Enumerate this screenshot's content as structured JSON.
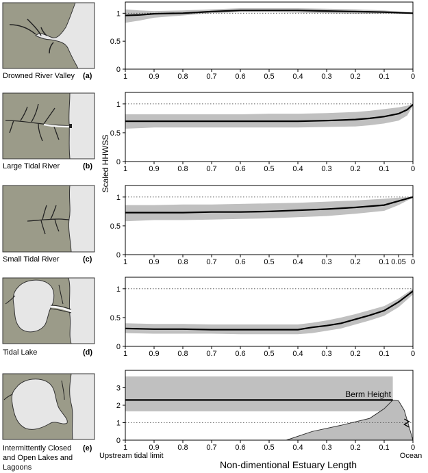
{
  "figure": {
    "y_axis_label": "Scaled HHWSS",
    "x_axis_label": "Non-dimentional Estuary Length",
    "left_end_label": "Upstream tidal limit",
    "right_end_label": "Ocean",
    "colors": {
      "land": "#9b9b89",
      "water": "#e6e6e6",
      "band": "#c0c0c0",
      "line": "#000000",
      "berm": "#bdbdbd"
    }
  },
  "panels": [
    {
      "letter": "(a)",
      "name_lines": [
        "Drowned River Valley"
      ],
      "sketch": "drowned"
    },
    {
      "letter": "(b)",
      "name_lines": [
        "Large Tidal River"
      ],
      "sketch": "large"
    },
    {
      "letter": "(c)",
      "name_lines": [
        "Small Tidal River"
      ],
      "sketch": "small"
    },
    {
      "letter": "(d)",
      "name_lines": [
        "Tidal Lake"
      ],
      "sketch": "lake"
    },
    {
      "letter": "(e)",
      "name_lines": [
        "Intermittently Closed",
        "and Open Lakes and",
        "Lagoons"
      ],
      "sketch": "icoll"
    }
  ],
  "chart_data": [
    {
      "type": "line",
      "panel": "(a)",
      "xlim": [
        1,
        0
      ],
      "ylim": [
        0,
        1.2
      ],
      "xticks": [
        "1",
        "0.9",
        "0.8",
        "0.7",
        "0.6",
        "0.5",
        "0.4",
        "0.3",
        "0.2",
        "0.1",
        "0"
      ],
      "yticks": [
        "0",
        "0.5",
        "1"
      ],
      "reference_line": 1,
      "x": [
        1,
        0.95,
        0.9,
        0.8,
        0.7,
        0.6,
        0.5,
        0.4,
        0.3,
        0.2,
        0.1,
        0.05,
        0
      ],
      "y": [
        0.96,
        0.97,
        0.99,
        1.0,
        1.03,
        1.05,
        1.05,
        1.05,
        1.04,
        1.03,
        1.02,
        1.01,
        1.0
      ],
      "band_upper": [
        1.07,
        1.05,
        1.04,
        1.05,
        1.07,
        1.09,
        1.09,
        1.09,
        1.08,
        1.07,
        1.05,
        1.03,
        1.0
      ],
      "band_lower": [
        0.83,
        0.87,
        0.92,
        0.96,
        1.0,
        1.02,
        1.02,
        1.01,
        1.0,
        0.99,
        0.99,
        0.99,
        0.99
      ]
    },
    {
      "type": "line",
      "panel": "(b)",
      "xlim": [
        1,
        0
      ],
      "ylim": [
        0,
        1.2
      ],
      "xticks": [
        "1",
        "0.9",
        "0.8",
        "0.7",
        "0.6",
        "0.5",
        "0.4",
        "0.3",
        "0.2",
        "0.1",
        "0"
      ],
      "yticks": [
        "0",
        "0.5",
        "1"
      ],
      "reference_line": 1,
      "x": [
        1,
        0.9,
        0.8,
        0.7,
        0.6,
        0.5,
        0.4,
        0.3,
        0.2,
        0.15,
        0.1,
        0.05,
        0.02,
        0
      ],
      "y": [
        0.7,
        0.7,
        0.7,
        0.7,
        0.7,
        0.7,
        0.7,
        0.71,
        0.73,
        0.75,
        0.78,
        0.83,
        0.9,
        0.99
      ],
      "band_upper": [
        0.82,
        0.82,
        0.82,
        0.82,
        0.82,
        0.83,
        0.83,
        0.84,
        0.86,
        0.88,
        0.91,
        0.94,
        0.97,
        1.0
      ],
      "band_lower": [
        0.57,
        0.59,
        0.59,
        0.59,
        0.59,
        0.59,
        0.59,
        0.6,
        0.61,
        0.63,
        0.66,
        0.71,
        0.8,
        0.97
      ]
    },
    {
      "type": "line",
      "panel": "(c)",
      "xlim": [
        1,
        0
      ],
      "ylim": [
        0,
        1.2
      ],
      "xticks": [
        "1",
        "0.9",
        "0.8",
        "0.7",
        "0.6",
        "0.5",
        "0.4",
        "0.3",
        "0.2",
        "0.1",
        "0.05",
        "0"
      ],
      "yticks": [
        "0",
        "0.5",
        "1"
      ],
      "reference_line": 1,
      "x": [
        1,
        0.9,
        0.8,
        0.7,
        0.6,
        0.5,
        0.4,
        0.3,
        0.2,
        0.1,
        0.05,
        0
      ],
      "y": [
        0.73,
        0.73,
        0.73,
        0.74,
        0.74,
        0.75,
        0.77,
        0.79,
        0.82,
        0.86,
        0.93,
        1.0
      ],
      "band_upper": [
        0.86,
        0.86,
        0.87,
        0.87,
        0.88,
        0.89,
        0.9,
        0.92,
        0.94,
        0.97,
        0.99,
        1.0
      ],
      "band_lower": [
        0.58,
        0.6,
        0.6,
        0.61,
        0.62,
        0.63,
        0.65,
        0.67,
        0.71,
        0.76,
        0.86,
        0.99
      ]
    },
    {
      "type": "line",
      "panel": "(d)",
      "xlim": [
        1,
        0
      ],
      "ylim": [
        0,
        1.2
      ],
      "xticks": [
        "1",
        "0.9",
        "0.8",
        "0.7",
        "0.6",
        "0.5",
        "0.4",
        "0.3",
        "0.2",
        "0.1",
        "0"
      ],
      "yticks": [
        "0",
        "0.5",
        "1"
      ],
      "reference_line": 1,
      "x": [
        1,
        0.9,
        0.8,
        0.7,
        0.6,
        0.5,
        0.4,
        0.35,
        0.3,
        0.25,
        0.2,
        0.15,
        0.1,
        0.05,
        0
      ],
      "y": [
        0.31,
        0.3,
        0.3,
        0.29,
        0.29,
        0.29,
        0.29,
        0.33,
        0.36,
        0.4,
        0.47,
        0.54,
        0.62,
        0.77,
        0.96
      ],
      "band_upper": [
        0.4,
        0.39,
        0.39,
        0.38,
        0.38,
        0.38,
        0.38,
        0.41,
        0.45,
        0.5,
        0.56,
        0.63,
        0.7,
        0.83,
        1.0
      ],
      "band_lower": [
        0.23,
        0.22,
        0.22,
        0.22,
        0.21,
        0.21,
        0.21,
        0.23,
        0.27,
        0.31,
        0.38,
        0.45,
        0.53,
        0.68,
        0.9
      ]
    },
    {
      "type": "line",
      "panel": "(e)",
      "xlim": [
        1,
        0
      ],
      "ylim": [
        0,
        4
      ],
      "xticks": [
        "1",
        "0.9",
        "0.8",
        "0.7",
        "0.6",
        "0.5",
        "0.4",
        "0.3",
        "0.2",
        "0.1",
        "0"
      ],
      "yticks": [
        "0",
        "1",
        "2",
        "3"
      ],
      "reference_line": 1,
      "x": [
        1,
        0.07
      ],
      "y": [
        2.3,
        2.3
      ],
      "band_upper": [
        3.65,
        3.65
      ],
      "band_lower": [
        1.65,
        1.65
      ],
      "annotation": "Berm Height",
      "berm_x": [
        0.44,
        0.35,
        0.25,
        0.15,
        0.1,
        0.07,
        0.05,
        0.03,
        0
      ],
      "berm_y": [
        0,
        0.5,
        0.85,
        1.25,
        1.8,
        2.3,
        2.25,
        1.7,
        0
      ]
    }
  ]
}
